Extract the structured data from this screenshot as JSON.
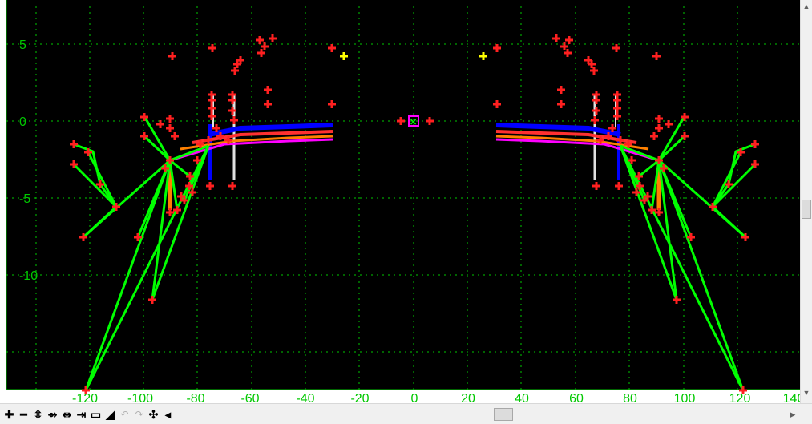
{
  "view": {
    "background": "#000000",
    "grid_color": "#00c800",
    "x_ticks": [
      "-120",
      "-100",
      "-80",
      "-60",
      "-40",
      "-20",
      "0",
      "20",
      "40",
      "60",
      "80",
      "100",
      "120",
      "140"
    ],
    "y_ticks": [
      "5",
      "0",
      "-5",
      "-10"
    ]
  },
  "colors": {
    "marker": "#ff2020",
    "marker_alt": "#ffff00",
    "line_green": "#00ff00",
    "line_blue": "#0000ff",
    "line_red": "#ff3030",
    "line_orange": "#ff8000",
    "line_magenta": "#ff00ff",
    "line_white": "#e0e0e0",
    "center_box": "#ff00ff"
  },
  "toolbar": {
    "buttons": [
      {
        "name": "zoom-in-icon",
        "glyph": "✚"
      },
      {
        "name": "zoom-out-icon",
        "glyph": "━"
      },
      {
        "name": "zoom-extents-icon",
        "glyph": "⇳"
      },
      {
        "name": "zoom-window-icon",
        "glyph": "⇴"
      },
      {
        "name": "pan-horizontal-icon",
        "glyph": "⇹"
      },
      {
        "name": "fit-height-icon",
        "glyph": "⇥"
      },
      {
        "name": "window-icon",
        "glyph": "▭"
      },
      {
        "name": "terrain-icon",
        "glyph": "◢"
      },
      {
        "name": "undo-icon",
        "glyph": "↶"
      },
      {
        "name": "redo-icon",
        "glyph": "↷"
      },
      {
        "name": "center-icon",
        "glyph": "✣"
      },
      {
        "name": "scroll-left-icon",
        "glyph": "◂"
      }
    ]
  }
}
